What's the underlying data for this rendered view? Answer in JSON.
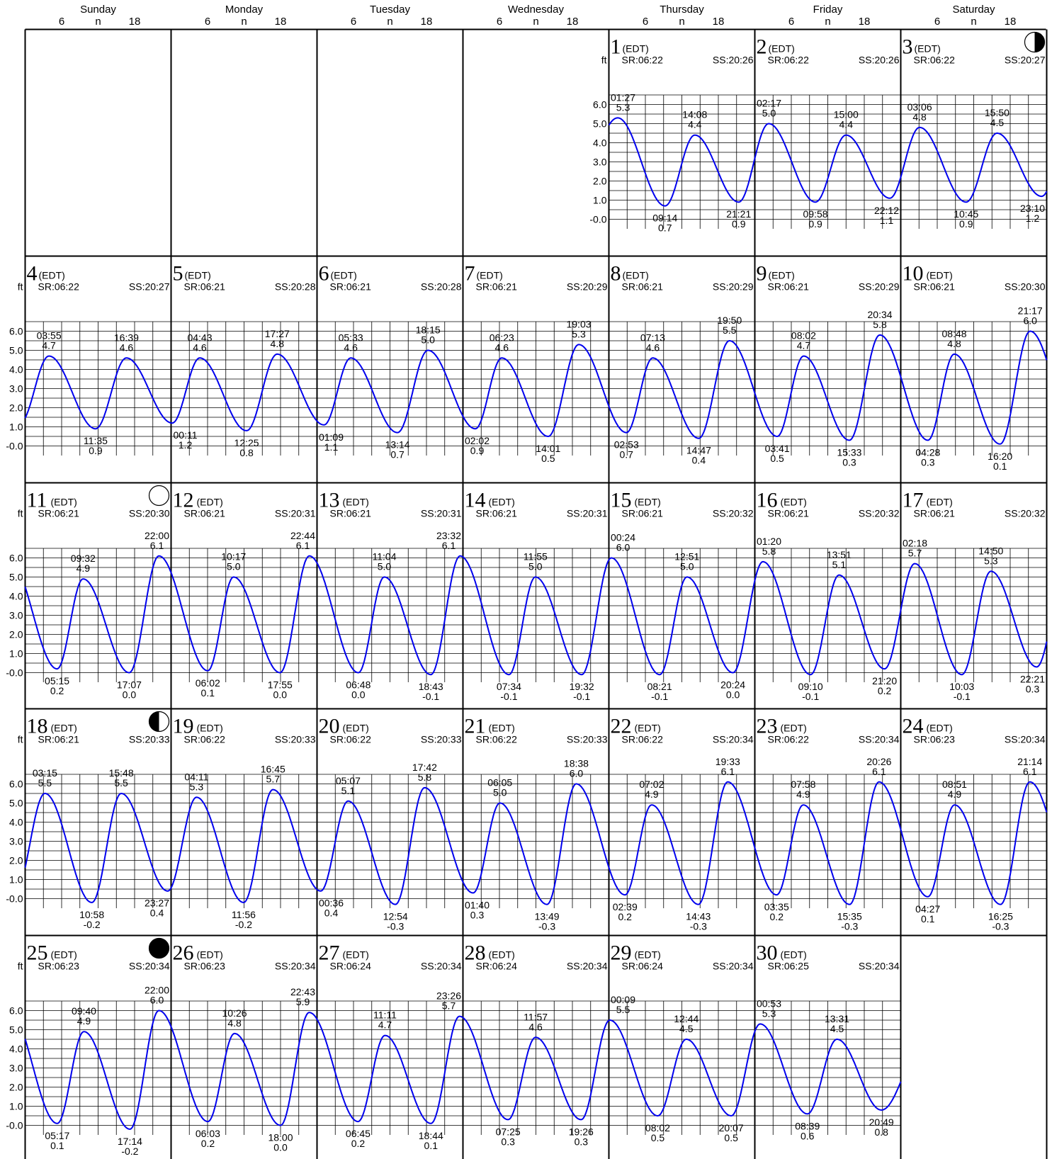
{
  "header": {
    "days": [
      "Sunday",
      "Monday",
      "Tuesday",
      "Wednesday",
      "Thursday",
      "Friday",
      "Saturday"
    ],
    "hour_ticks": [
      "6",
      "n",
      "18"
    ]
  },
  "labels": {
    "tz": "(EDT)",
    "unit": "ft",
    "sunrise_prefix": "SR:",
    "sunset_prefix": "SS:",
    "y_ticks": [
      "6.0",
      "5.0",
      "4.0",
      "3.0",
      "2.0",
      "1.0",
      "-0.0"
    ]
  },
  "colors": {
    "curve": "#0000ee",
    "grid": "#000000",
    "background": "#ffffff"
  },
  "chart_data": {
    "type": "line",
    "ylabel": "ft",
    "ylim": [
      -0.5,
      6.5
    ],
    "start_weekday": 4,
    "days": [
      {
        "d": 1,
        "sr": "06:22",
        "ss": "20:26",
        "moon": "",
        "ev": [
          [
            "01:27",
            5.3,
            "H"
          ],
          [
            "09:14",
            0.7,
            "L"
          ],
          [
            "14:08",
            4.4,
            "H"
          ],
          [
            "21:21",
            0.9,
            "L"
          ]
        ]
      },
      {
        "d": 2,
        "sr": "06:22",
        "ss": "20:26",
        "moon": "",
        "ev": [
          [
            "02:17",
            5.0,
            "H"
          ],
          [
            "09:58",
            0.9,
            "L"
          ],
          [
            "15:00",
            4.4,
            "H"
          ],
          [
            "22:12",
            1.1,
            "L"
          ]
        ]
      },
      {
        "d": 3,
        "sr": "06:22",
        "ss": "20:27",
        "moon": "first-quarter",
        "ev": [
          [
            "03:06",
            4.8,
            "H"
          ],
          [
            "10:45",
            0.9,
            "L"
          ],
          [
            "15:50",
            4.5,
            "H"
          ],
          [
            "23:10",
            1.2,
            "L"
          ]
        ]
      },
      {
        "d": 4,
        "sr": "06:22",
        "ss": "20:27",
        "moon": "",
        "ev": [
          [
            "03:55",
            4.7,
            "H"
          ],
          [
            "11:35",
            0.9,
            "L"
          ],
          [
            "16:39",
            4.6,
            "H"
          ]
        ]
      },
      {
        "d": 5,
        "sr": "06:21",
        "ss": "20:28",
        "moon": "",
        "ev": [
          [
            "00:11",
            1.2,
            "L"
          ],
          [
            "04:43",
            4.6,
            "H"
          ],
          [
            "12:25",
            0.8,
            "L"
          ],
          [
            "17:27",
            4.8,
            "H"
          ]
        ]
      },
      {
        "d": 6,
        "sr": "06:21",
        "ss": "20:28",
        "moon": "",
        "ev": [
          [
            "01:09",
            1.1,
            "L"
          ],
          [
            "05:33",
            4.6,
            "H"
          ],
          [
            "13:14",
            0.7,
            "L"
          ],
          [
            "18:15",
            5.0,
            "H"
          ]
        ]
      },
      {
        "d": 7,
        "sr": "06:21",
        "ss": "20:29",
        "moon": "",
        "ev": [
          [
            "02:02",
            0.9,
            "L"
          ],
          [
            "06:23",
            4.6,
            "H"
          ],
          [
            "14:01",
            0.5,
            "L"
          ],
          [
            "19:03",
            5.3,
            "H"
          ]
        ]
      },
      {
        "d": 8,
        "sr": "06:21",
        "ss": "20:29",
        "moon": "",
        "ev": [
          [
            "02:53",
            0.7,
            "L"
          ],
          [
            "07:13",
            4.6,
            "H"
          ],
          [
            "14:47",
            0.4,
            "L"
          ],
          [
            "19:50",
            5.5,
            "H"
          ]
        ]
      },
      {
        "d": 9,
        "sr": "06:21",
        "ss": "20:29",
        "moon": "",
        "ev": [
          [
            "03:41",
            0.5,
            "L"
          ],
          [
            "08:02",
            4.7,
            "H"
          ],
          [
            "15:33",
            0.3,
            "L"
          ],
          [
            "20:34",
            5.8,
            "H"
          ]
        ]
      },
      {
        "d": 10,
        "sr": "06:21",
        "ss": "20:30",
        "moon": "",
        "ev": [
          [
            "04:28",
            0.3,
            "L"
          ],
          [
            "08:48",
            4.8,
            "H"
          ],
          [
            "16:20",
            0.1,
            "L"
          ],
          [
            "21:17",
            6.0,
            "H"
          ]
        ]
      },
      {
        "d": 11,
        "sr": "06:21",
        "ss": "20:30",
        "moon": "full",
        "ev": [
          [
            "05:15",
            0.2,
            "L"
          ],
          [
            "09:32",
            4.9,
            "H"
          ],
          [
            "17:07",
            0.0,
            "L"
          ],
          [
            "22:00",
            6.1,
            "H"
          ]
        ]
      },
      {
        "d": 12,
        "sr": "06:21",
        "ss": "20:31",
        "moon": "",
        "ev": [
          [
            "06:02",
            0.1,
            "L"
          ],
          [
            "10:17",
            5.0,
            "H"
          ],
          [
            "17:55",
            0.0,
            "L"
          ],
          [
            "22:44",
            6.1,
            "H"
          ]
        ]
      },
      {
        "d": 13,
        "sr": "06:21",
        "ss": "20:31",
        "moon": "",
        "ev": [
          [
            "06:48",
            0.0,
            "L"
          ],
          [
            "11:04",
            5.0,
            "H"
          ],
          [
            "18:43",
            -0.1,
            "L"
          ],
          [
            "23:32",
            6.1,
            "H"
          ]
        ]
      },
      {
        "d": 14,
        "sr": "06:21",
        "ss": "20:31",
        "moon": "",
        "ev": [
          [
            "07:34",
            -0.1,
            "L"
          ],
          [
            "11:55",
            5.0,
            "H"
          ],
          [
            "19:32",
            -0.1,
            "L"
          ]
        ]
      },
      {
        "d": 15,
        "sr": "06:21",
        "ss": "20:32",
        "moon": "",
        "ev": [
          [
            "00:24",
            6.0,
            "H"
          ],
          [
            "08:21",
            -0.1,
            "L"
          ],
          [
            "12:51",
            5.0,
            "H"
          ],
          [
            "20:24",
            0.0,
            "L"
          ]
        ]
      },
      {
        "d": 16,
        "sr": "06:21",
        "ss": "20:32",
        "moon": "",
        "ev": [
          [
            "01:20",
            5.8,
            "H"
          ],
          [
            "09:10",
            -0.1,
            "L"
          ],
          [
            "13:51",
            5.1,
            "H"
          ],
          [
            "21:20",
            0.2,
            "L"
          ]
        ]
      },
      {
        "d": 17,
        "sr": "06:21",
        "ss": "20:32",
        "moon": "",
        "ev": [
          [
            "02:18",
            5.7,
            "H"
          ],
          [
            "10:03",
            -0.1,
            "L"
          ],
          [
            "14:50",
            5.3,
            "H"
          ],
          [
            "22:21",
            0.3,
            "L"
          ]
        ]
      },
      {
        "d": 18,
        "sr": "06:21",
        "ss": "20:33",
        "moon": "last-quarter",
        "ev": [
          [
            "03:15",
            5.5,
            "H"
          ],
          [
            "10:58",
            -0.2,
            "L"
          ],
          [
            "15:48",
            5.5,
            "H"
          ],
          [
            "23:27",
            0.4,
            "L"
          ]
        ]
      },
      {
        "d": 19,
        "sr": "06:22",
        "ss": "20:33",
        "moon": "",
        "ev": [
          [
            "04:11",
            5.3,
            "H"
          ],
          [
            "11:56",
            -0.2,
            "L"
          ],
          [
            "16:45",
            5.7,
            "H"
          ]
        ]
      },
      {
        "d": 20,
        "sr": "06:22",
        "ss": "20:33",
        "moon": "",
        "ev": [
          [
            "00:36",
            0.4,
            "L"
          ],
          [
            "05:07",
            5.1,
            "H"
          ],
          [
            "12:54",
            -0.3,
            "L"
          ],
          [
            "17:42",
            5.8,
            "H"
          ]
        ]
      },
      {
        "d": 21,
        "sr": "06:22",
        "ss": "20:33",
        "moon": "",
        "ev": [
          [
            "01:40",
            0.3,
            "L"
          ],
          [
            "06:05",
            5.0,
            "H"
          ],
          [
            "13:49",
            -0.3,
            "L"
          ],
          [
            "18:38",
            6.0,
            "H"
          ]
        ]
      },
      {
        "d": 22,
        "sr": "06:22",
        "ss": "20:34",
        "moon": "",
        "ev": [
          [
            "02:39",
            0.2,
            "L"
          ],
          [
            "07:02",
            4.9,
            "H"
          ],
          [
            "14:43",
            -0.3,
            "L"
          ],
          [
            "19:33",
            6.1,
            "H"
          ]
        ]
      },
      {
        "d": 23,
        "sr": "06:22",
        "ss": "20:34",
        "moon": "",
        "ev": [
          [
            "03:35",
            0.2,
            "L"
          ],
          [
            "07:58",
            4.9,
            "H"
          ],
          [
            "15:35",
            -0.3,
            "L"
          ],
          [
            "20:26",
            6.1,
            "H"
          ]
        ]
      },
      {
        "d": 24,
        "sr": "06:23",
        "ss": "20:34",
        "moon": "",
        "ev": [
          [
            "04:27",
            0.1,
            "L"
          ],
          [
            "08:51",
            4.9,
            "H"
          ],
          [
            "16:25",
            -0.3,
            "L"
          ],
          [
            "21:14",
            6.1,
            "H"
          ]
        ]
      },
      {
        "d": 25,
        "sr": "06:23",
        "ss": "20:34",
        "moon": "new",
        "ev": [
          [
            "05:17",
            0.1,
            "L"
          ],
          [
            "09:40",
            4.9,
            "H"
          ],
          [
            "17:14",
            -0.2,
            "L"
          ],
          [
            "22:00",
            6.0,
            "H"
          ]
        ]
      },
      {
        "d": 26,
        "sr": "06:23",
        "ss": "20:34",
        "moon": "",
        "ev": [
          [
            "06:03",
            0.2,
            "L"
          ],
          [
            "10:26",
            4.8,
            "H"
          ],
          [
            "18:00",
            0.0,
            "L"
          ],
          [
            "22:43",
            5.9,
            "H"
          ]
        ]
      },
      {
        "d": 27,
        "sr": "06:24",
        "ss": "20:34",
        "moon": "",
        "ev": [
          [
            "06:45",
            0.2,
            "L"
          ],
          [
            "11:11",
            4.7,
            "H"
          ],
          [
            "18:44",
            0.1,
            "L"
          ],
          [
            "23:26",
            5.7,
            "H"
          ]
        ]
      },
      {
        "d": 28,
        "sr": "06:24",
        "ss": "20:34",
        "moon": "",
        "ev": [
          [
            "07:25",
            0.3,
            "L"
          ],
          [
            "11:57",
            4.6,
            "H"
          ],
          [
            "19:26",
            0.3,
            "L"
          ]
        ]
      },
      {
        "d": 29,
        "sr": "06:24",
        "ss": "20:34",
        "moon": "",
        "ev": [
          [
            "00:09",
            5.5,
            "H"
          ],
          [
            "08:02",
            0.5,
            "L"
          ],
          [
            "12:44",
            4.5,
            "H"
          ],
          [
            "20:07",
            0.5,
            "L"
          ]
        ]
      },
      {
        "d": 30,
        "sr": "06:25",
        "ss": "20:34",
        "moon": "",
        "ev": [
          [
            "00:53",
            5.3,
            "H"
          ],
          [
            "08:39",
            0.6,
            "L"
          ],
          [
            "13:31",
            4.5,
            "H"
          ],
          [
            "20:49",
            0.8,
            "L"
          ]
        ]
      }
    ]
  }
}
